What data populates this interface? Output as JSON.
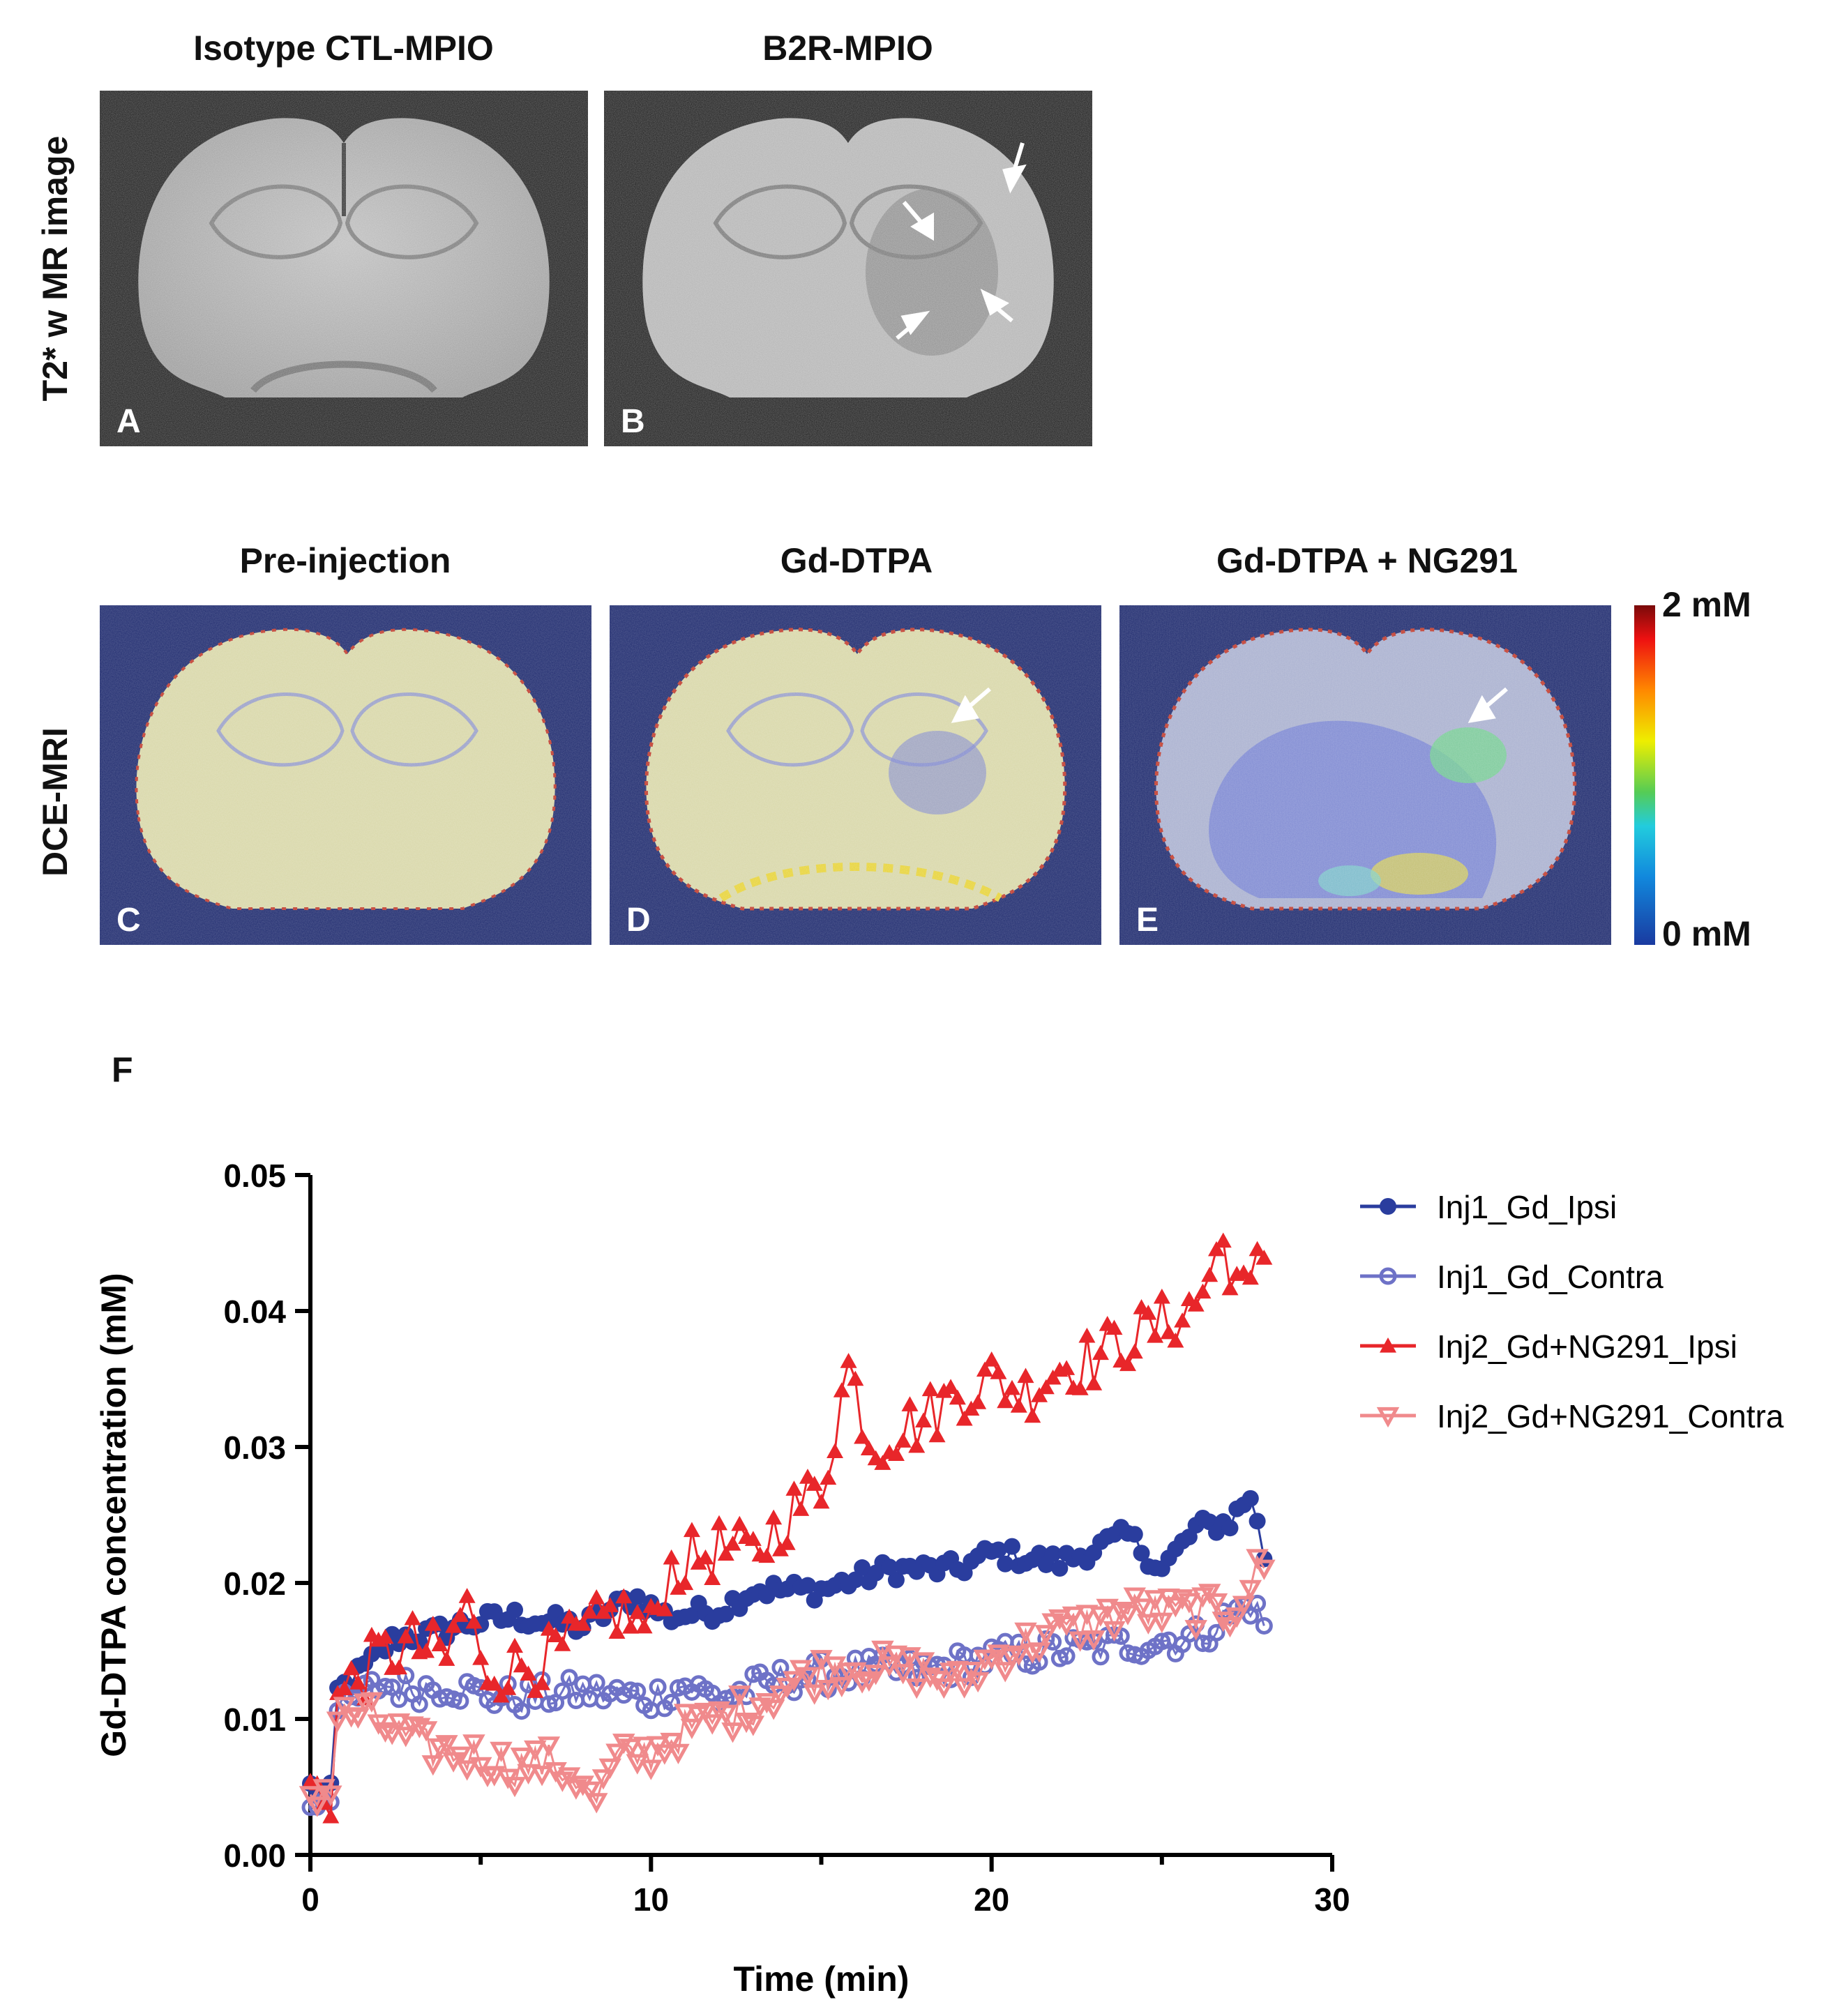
{
  "row1": {
    "row_label": "T2* w MR image",
    "panels": [
      {
        "title": "Isotype CTL-MPIO",
        "label": "A"
      },
      {
        "title": "B2R-MPIO",
        "label": "B"
      }
    ]
  },
  "row2": {
    "row_label": "DCE-MRI",
    "panels": [
      {
        "title": "Pre-injection",
        "label": "C"
      },
      {
        "title": "Gd-DTPA",
        "label": "D"
      },
      {
        "title": "Gd-DTPA + NG291",
        "label": "E"
      }
    ],
    "colorbar": {
      "max_label": "2 mM",
      "min_label": "0 mM"
    }
  },
  "panel_f_label": "F",
  "chart_data": {
    "type": "line",
    "xlabel": "Time (min)",
    "ylabel": "Gd-DTPA concentration (mM)",
    "xlim": [
      0,
      30
    ],
    "ylim": [
      0,
      0.05
    ],
    "xticks": [
      "0",
      "10",
      "20",
      "30"
    ],
    "yticks": [
      "0.00",
      "0.01",
      "0.02",
      "0.03",
      "0.04",
      "0.05"
    ],
    "series": [
      {
        "name": "Inj1_Gd_Ipsi",
        "color": "#2a3d9e",
        "marker": "filled-circle",
        "keypoints": [
          [
            0,
            0.005
          ],
          [
            0.6,
            0.0045
          ],
          [
            0.8,
            0.012
          ],
          [
            1.5,
            0.0135
          ],
          [
            2.5,
            0.016
          ],
          [
            3.5,
            0.0162
          ],
          [
            4.5,
            0.017
          ],
          [
            6,
            0.0175
          ],
          [
            8,
            0.0168
          ],
          [
            9.5,
            0.019
          ],
          [
            10.5,
            0.0175
          ],
          [
            12,
            0.018
          ],
          [
            13,
            0.0195
          ],
          [
            15,
            0.0195
          ],
          [
            17,
            0.021
          ],
          [
            19,
            0.021
          ],
          [
            20,
            0.0222
          ],
          [
            22,
            0.0215
          ],
          [
            24,
            0.0235
          ],
          [
            25,
            0.021
          ],
          [
            26,
            0.024
          ],
          [
            27,
            0.0245
          ],
          [
            27.6,
            0.0265
          ],
          [
            28,
            0.022
          ]
        ]
      },
      {
        "name": "Inj1_Gd_Contra",
        "color": "#6e72c7",
        "marker": "open-circle",
        "keypoints": [
          [
            0,
            0.0038
          ],
          [
            0.6,
            0.0048
          ],
          [
            0.8,
            0.0105
          ],
          [
            2,
            0.0125
          ],
          [
            3,
            0.0122
          ],
          [
            4,
            0.0125
          ],
          [
            5,
            0.0118
          ],
          [
            6,
            0.0115
          ],
          [
            8,
            0.012
          ],
          [
            10,
            0.0115
          ],
          [
            11,
            0.0125
          ],
          [
            12,
            0.0115
          ],
          [
            14,
            0.013
          ],
          [
            16,
            0.0135
          ],
          [
            18,
            0.0135
          ],
          [
            20,
            0.0145
          ],
          [
            22,
            0.015
          ],
          [
            24,
            0.0155
          ],
          [
            26,
            0.016
          ],
          [
            27.6,
            0.0185
          ],
          [
            28,
            0.017
          ]
        ]
      },
      {
        "name": "Inj2_Gd+NG291_Ipsi",
        "color": "#e8262a",
        "marker": "filled-triangle-up",
        "keypoints": [
          [
            0,
            0.0048
          ],
          [
            0.6,
            0.0045
          ],
          [
            0.8,
            0.0115
          ],
          [
            2,
            0.0145
          ],
          [
            3,
            0.0155
          ],
          [
            4,
            0.0145
          ],
          [
            4.6,
            0.019
          ],
          [
            5,
            0.0135
          ],
          [
            6,
            0.0138
          ],
          [
            7,
            0.0145
          ],
          [
            8,
            0.016
          ],
          [
            9,
            0.018
          ],
          [
            10,
            0.0165
          ],
          [
            10.5,
            0.021
          ],
          [
            12,
            0.0225
          ],
          [
            13,
            0.022
          ],
          [
            14,
            0.025
          ],
          [
            15,
            0.027
          ],
          [
            15.8,
            0.036
          ],
          [
            16.5,
            0.03
          ],
          [
            17,
            0.031
          ],
          [
            18,
            0.032
          ],
          [
            19,
            0.034
          ],
          [
            20,
            0.035
          ],
          [
            21,
            0.034
          ],
          [
            22,
            0.036
          ],
          [
            23,
            0.0365
          ],
          [
            24,
            0.038
          ],
          [
            25,
            0.039
          ],
          [
            26,
            0.0405
          ],
          [
            26.8,
            0.045
          ],
          [
            27.5,
            0.0405
          ],
          [
            28,
            0.0445
          ]
        ]
      },
      {
        "name": "Inj2_Gd+NG291_Contra",
        "color": "#f08a8c",
        "marker": "open-triangle-down",
        "keypoints": [
          [
            0,
            0.0045
          ],
          [
            0.6,
            0.005
          ],
          [
            0.8,
            0.01
          ],
          [
            1.5,
            0.0105
          ],
          [
            2.5,
            0.009
          ],
          [
            3.5,
            0.0078
          ],
          [
            5,
            0.0072
          ],
          [
            6,
            0.0065
          ],
          [
            7,
            0.0068
          ],
          [
            8,
            0.0055
          ],
          [
            8.3,
            0.0035
          ],
          [
            9,
            0.007
          ],
          [
            10,
            0.0075
          ],
          [
            11,
            0.0092
          ],
          [
            12,
            0.01
          ],
          [
            13,
            0.011
          ],
          [
            14,
            0.0125
          ],
          [
            15,
            0.0135
          ],
          [
            16,
            0.014
          ],
          [
            18,
            0.0135
          ],
          [
            19,
            0.0125
          ],
          [
            20,
            0.0145
          ],
          [
            21,
            0.0155
          ],
          [
            22,
            0.0165
          ],
          [
            23,
            0.017
          ],
          [
            24,
            0.018
          ],
          [
            25,
            0.0178
          ],
          [
            26,
            0.018
          ],
          [
            27,
            0.0178
          ],
          [
            28,
            0.0215
          ]
        ]
      }
    ]
  }
}
